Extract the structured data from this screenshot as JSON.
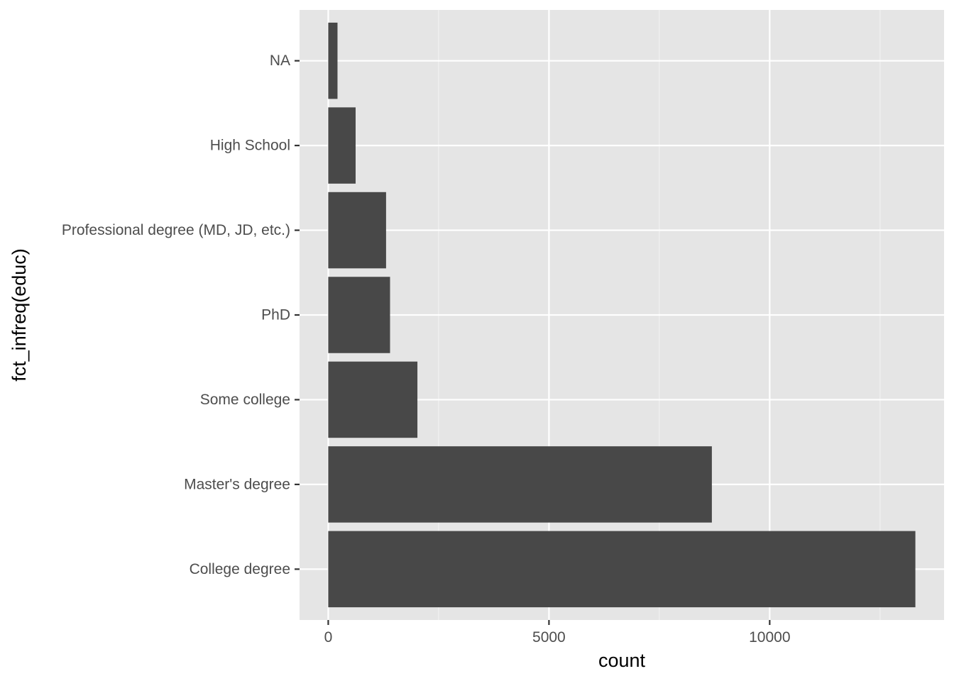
{
  "chart_data": {
    "type": "bar",
    "orientation": "horizontal",
    "categories": [
      "College degree",
      "Master's degree",
      "Some college",
      "PhD",
      "Professional degree (MD, JD, etc.)",
      "High School",
      "NA"
    ],
    "values": [
      13300,
      8690,
      2020,
      1400,
      1310,
      620,
      210
    ],
    "xlabel": "count",
    "ylabel": "fct_infreq(educ)",
    "x_ticks": [
      0,
      5000,
      10000
    ],
    "xlim": [
      -650,
      13950
    ],
    "grid": true,
    "colors": {
      "bar": "#484848",
      "panel": "#e5e5e5",
      "grid_major": "#ffffff",
      "grid_minor": "#f2f2f2"
    }
  }
}
